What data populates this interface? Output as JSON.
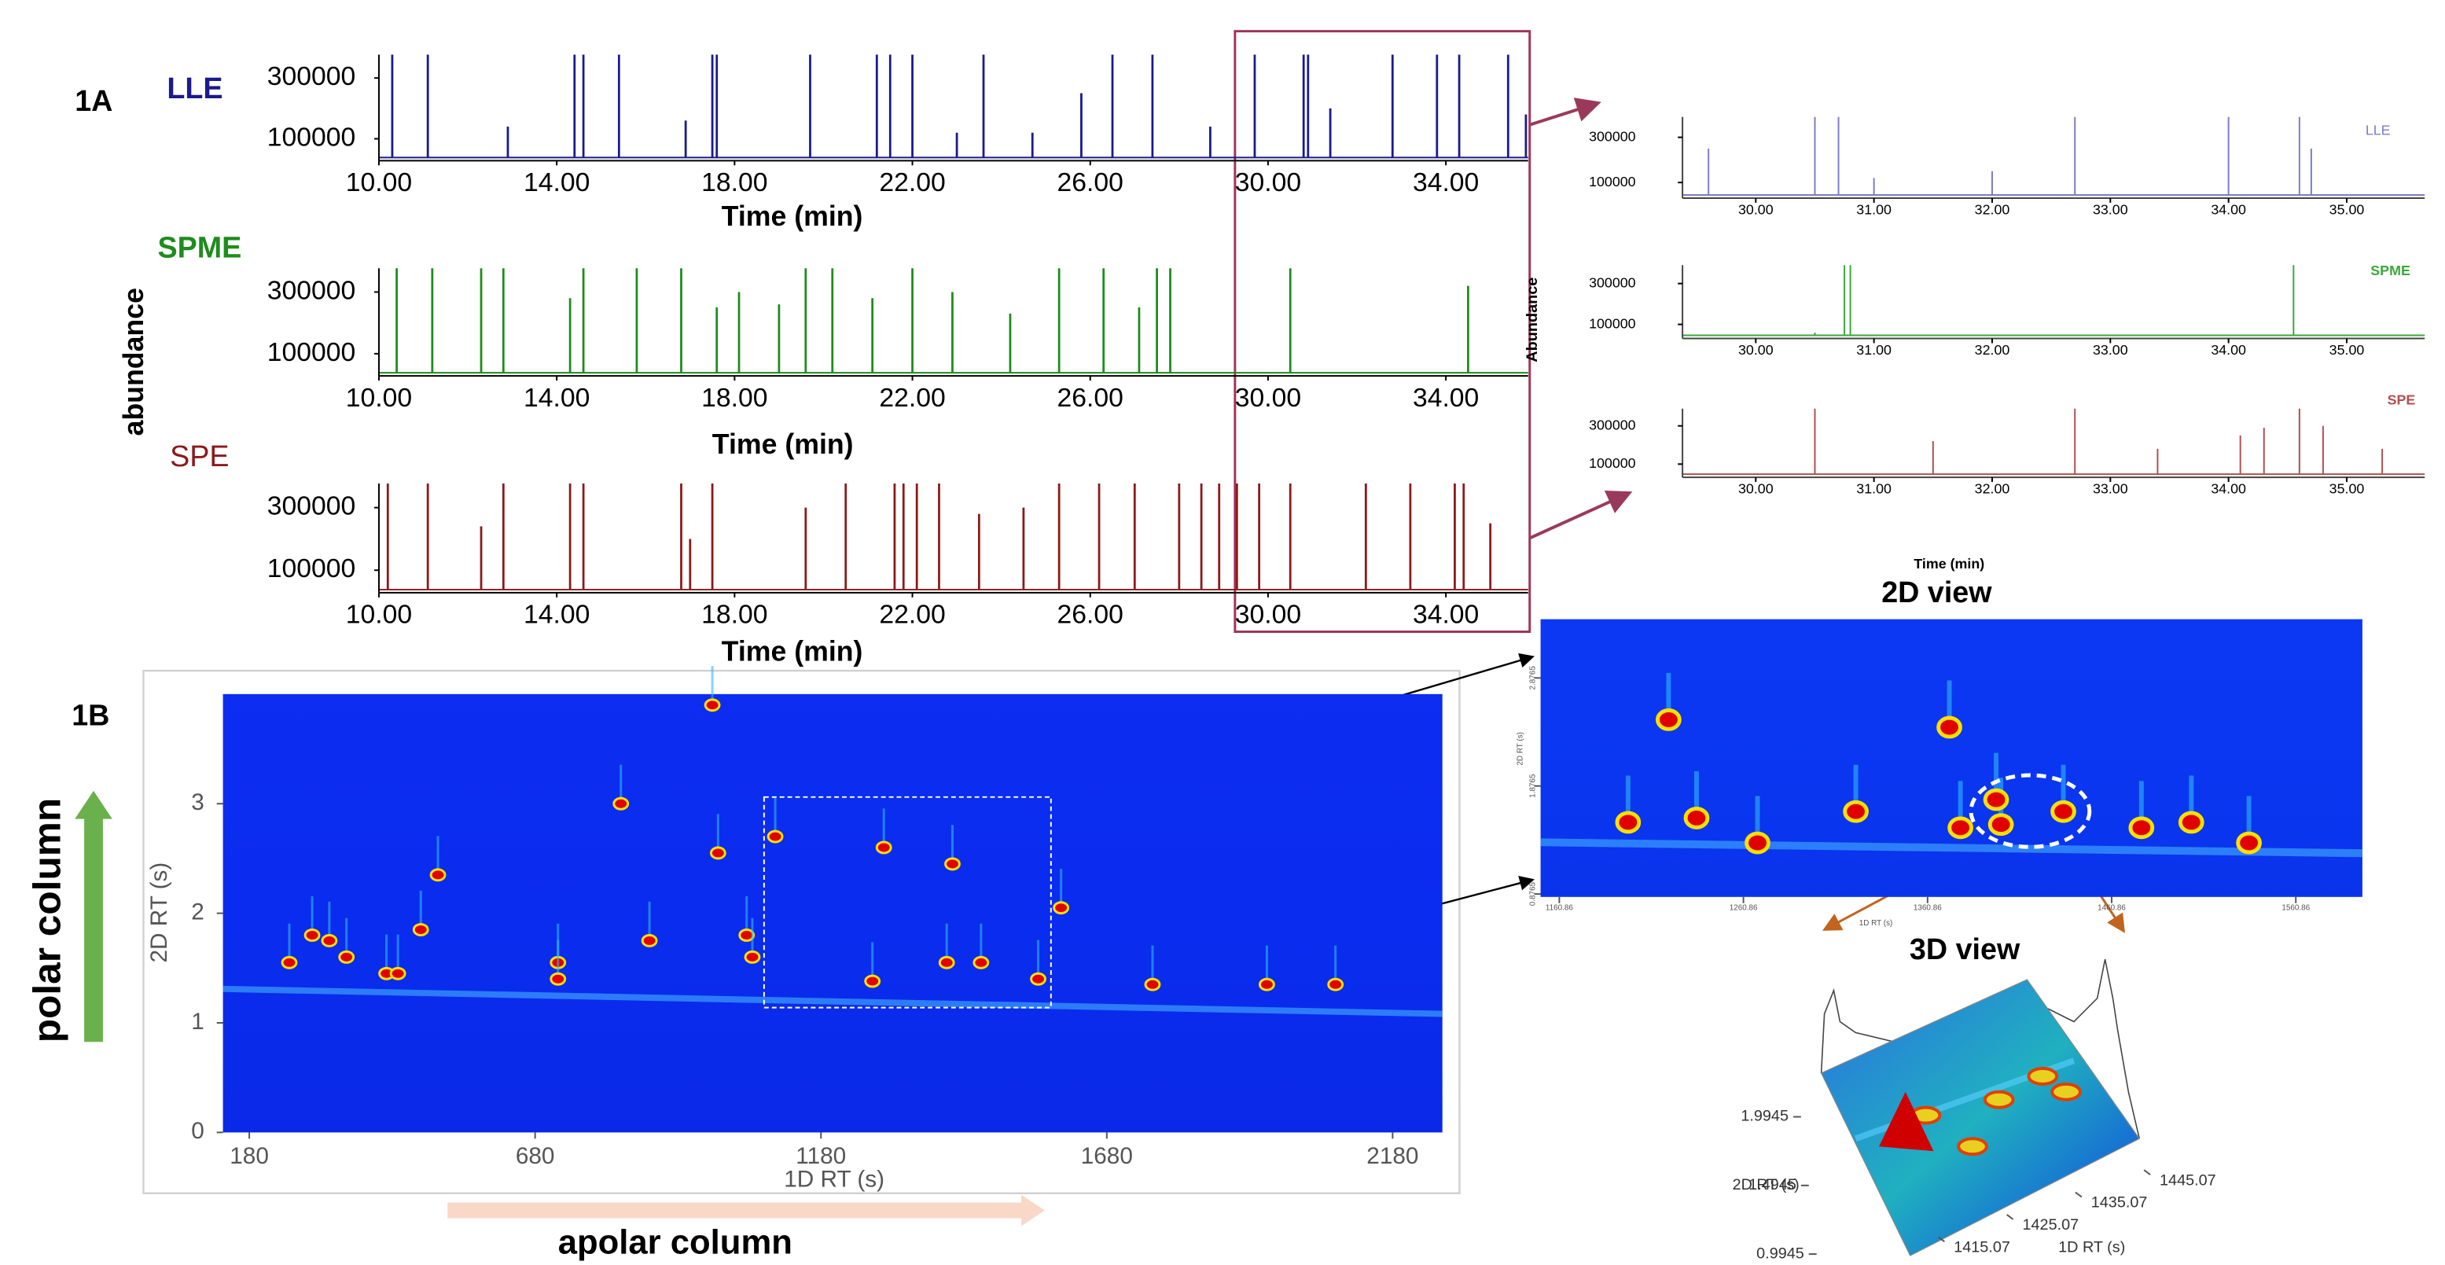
{
  "figure": {
    "panel_a_label": "1A",
    "panel_b_label": "1B",
    "y_axis_label": "abundance",
    "polar_column": "polar column",
    "apolar_column": "apolar column"
  },
  "chart_data": [
    {
      "type": "spike",
      "title": "LLE",
      "color": "#1a1a8c",
      "xlabel": "Time (min)",
      "x": [
        10.3,
        11.1,
        12.9,
        14.4,
        14.6,
        15.4,
        16.9,
        17.5,
        17.6,
        19.7,
        21.2,
        21.5,
        22.0,
        23.0,
        23.6,
        24.7,
        25.8,
        26.5,
        27.4,
        28.7,
        29.7,
        30.8,
        30.9,
        31.4,
        32.8,
        33.8,
        34.3,
        35.4,
        35.8
      ],
      "values": [
        377000,
        377000,
        140000,
        377000,
        377000,
        377000,
        160000,
        377000,
        377000,
        377000,
        377000,
        377000,
        377000,
        120000,
        377000,
        120000,
        250000,
        377000,
        377000,
        140000,
        377000,
        377000,
        377000,
        200000,
        377000,
        377000,
        377000,
        377000,
        180000
      ],
      "xlim": [
        10,
        35.85
      ],
      "ylim": [
        28000,
        377000
      ],
      "xticks": [
        {
          "value": 10,
          "label": "10.00"
        },
        {
          "value": 14,
          "label": "14.00"
        },
        {
          "value": 18,
          "label": "18.00"
        },
        {
          "value": 22,
          "label": "22.00"
        },
        {
          "value": 26,
          "label": "26.00"
        },
        {
          "value": 30,
          "label": "30.00"
        },
        {
          "value": 34,
          "label": "34.00"
        }
      ],
      "yticks": [
        100000,
        300000
      ]
    },
    {
      "type": "spike",
      "title": "SPME",
      "color": "#1e8c1e",
      "xlabel": "Time (min)",
      "x": [
        10.4,
        11.2,
        12.3,
        12.8,
        14.3,
        14.6,
        15.8,
        16.8,
        17.6,
        18.1,
        19.0,
        19.6,
        20.2,
        21.1,
        22.0,
        22.9,
        24.2,
        25.3,
        26.3,
        27.1,
        27.5,
        27.8,
        30.5,
        34.5
      ],
      "values": [
        377000,
        377000,
        377000,
        377000,
        280000,
        377000,
        377000,
        377000,
        250000,
        300000,
        260000,
        377000,
        377000,
        280000,
        377000,
        300000,
        230000,
        377000,
        377000,
        250000,
        377000,
        377000,
        377000,
        320000
      ],
      "xlim": [
        10,
        35.85
      ],
      "ylim": [
        28000,
        377000
      ],
      "xticks": [
        {
          "value": 10,
          "label": "10.00"
        },
        {
          "value": 14,
          "label": "14.00"
        },
        {
          "value": 18,
          "label": "18.00"
        },
        {
          "value": 22,
          "label": "22.00"
        },
        {
          "value": 26,
          "label": "26.00"
        },
        {
          "value": 30,
          "label": "30.00"
        },
        {
          "value": 34,
          "label": "34.00"
        }
      ],
      "yticks": [
        100000,
        300000
      ]
    },
    {
      "type": "spike",
      "title": "SPE",
      "color": "#8b1a1a",
      "xlabel": "Time (min)",
      "x": [
        10.2,
        11.1,
        12.3,
        12.8,
        14.3,
        14.6,
        16.8,
        17.0,
        17.5,
        19.6,
        20.5,
        21.6,
        21.8,
        22.1,
        22.6,
        23.5,
        24.5,
        25.3,
        26.2,
        27.0,
        28.0,
        28.5,
        28.9,
        29.3,
        29.8,
        30.5,
        32.2,
        33.2,
        34.2,
        34.4,
        35.0
      ],
      "values": [
        377000,
        377000,
        240000,
        377000,
        377000,
        377000,
        377000,
        200000,
        377000,
        300000,
        377000,
        377000,
        377000,
        377000,
        377000,
        280000,
        300000,
        377000,
        377000,
        377000,
        377000,
        377000,
        377000,
        377000,
        377000,
        377000,
        377000,
        377000,
        377000,
        377000,
        250000
      ],
      "xlim": [
        10,
        35.85
      ],
      "ylim": [
        28000,
        377000
      ],
      "xticks": [
        {
          "value": 10,
          "label": "10.00"
        },
        {
          "value": 14,
          "label": "14.00"
        },
        {
          "value": 18,
          "label": "18.00"
        },
        {
          "value": 22,
          "label": "22.00"
        },
        {
          "value": 26,
          "label": "26.00"
        },
        {
          "value": 30,
          "label": "30.00"
        },
        {
          "value": 34,
          "label": "34.00"
        }
      ],
      "yticks": [
        100000,
        300000
      ]
    },
    {
      "type": "spike",
      "title": "LLE",
      "color": "#7d7dc4",
      "x": [
        29.6,
        30.5,
        30.7,
        31.0,
        32.0,
        32.7,
        34.0,
        34.6,
        34.7
      ],
      "values": [
        250000,
        390000,
        390000,
        120000,
        150000,
        390000,
        390000,
        390000,
        250000
      ],
      "xlim": [
        29.38,
        35.66
      ],
      "ylim": [
        31000,
        390000
      ],
      "xticks": [
        {
          "value": 30,
          "label": "30.00"
        },
        {
          "value": 31,
          "label": "31.00"
        },
        {
          "value": 32,
          "label": "32.00"
        },
        {
          "value": 33,
          "label": "33.00"
        },
        {
          "value": 34,
          "label": "34.00"
        },
        {
          "value": 35,
          "label": "35.00"
        }
      ],
      "yticks": [
        100000,
        300000
      ]
    },
    {
      "type": "spike",
      "title": "SPME",
      "color": "#3aa83a",
      "ylabel": "Abundance",
      "x": [
        30.5,
        30.75,
        30.8,
        34.55
      ],
      "values": [
        60000,
        390000,
        390000,
        390000
      ],
      "xlim": [
        29.38,
        35.66
      ],
      "ylim": [
        31000,
        390000
      ],
      "xticks": [
        {
          "value": 30,
          "label": "30.00"
        },
        {
          "value": 31,
          "label": "31.00"
        },
        {
          "value": 32,
          "label": "32.00"
        },
        {
          "value": 33,
          "label": "33.00"
        },
        {
          "value": 34,
          "label": "34.00"
        },
        {
          "value": 35,
          "label": "35.00"
        }
      ],
      "yticks": [
        100000,
        300000
      ]
    },
    {
      "type": "spike",
      "title": "SPE",
      "color": "#b05050",
      "xlabel": "Time (min)",
      "x": [
        30.5,
        31.5,
        32.7,
        33.4,
        34.1,
        34.3,
        34.6,
        34.8,
        35.3
      ],
      "values": [
        390000,
        220000,
        390000,
        180000,
        250000,
        290000,
        390000,
        300000,
        180000
      ],
      "xlim": [
        29.38,
        35.66
      ],
      "ylim": [
        31000,
        390000
      ],
      "xticks": [
        {
          "value": 30,
          "label": "30.00"
        },
        {
          "value": 31,
          "label": "31.00"
        },
        {
          "value": 32,
          "label": "32.00"
        },
        {
          "value": 33,
          "label": "33.00"
        },
        {
          "value": 34,
          "label": "34.00"
        },
        {
          "value": 35,
          "label": "35.00"
        }
      ],
      "yticks": [
        100000,
        300000
      ]
    },
    {
      "type": "scatter",
      "xlabel": "1D RT (s)",
      "ylabel": "2D RT (s)",
      "color": "#e00000",
      "background": "#0a2cf0",
      "x": [
        250,
        290,
        320,
        350,
        420,
        440,
        480,
        510,
        720,
        720,
        830,
        880,
        990,
        1000,
        1050,
        1060,
        1100,
        1270,
        1290,
        1400,
        1410,
        1460,
        1560,
        1600,
        1760,
        1960,
        2080
      ],
      "y": [
        1.55,
        1.8,
        1.75,
        1.6,
        1.45,
        1.45,
        1.85,
        2.35,
        1.55,
        1.4,
        3.0,
        1.75,
        3.9,
        2.55,
        1.8,
        1.6,
        2.7,
        1.38,
        2.6,
        1.55,
        2.45,
        1.55,
        1.4,
        2.05,
        1.35,
        1.35,
        1.35
      ],
      "xlim": [
        134,
        2267
      ],
      "ylim": [
        0,
        4.0
      ],
      "xticks": [
        180,
        680,
        1180,
        1680,
        2180
      ],
      "yticks": [
        0,
        1,
        2,
        3
      ]
    },
    {
      "type": "scatter",
      "title": "2D view",
      "xlabel": "1D RT (s)",
      "ylabel": "2D RT (s)",
      "color": "#e00000",
      "background": "#0a3cf5",
      "x": [
        1220.2,
        1372.7,
        1198.2,
        1235.4,
        1268.5,
        1321.9,
        1378.7,
        1400.7,
        1398.1,
        1434.6,
        1477.0,
        1504.1,
        1535.4
      ],
      "y": [
        2.49,
        2.42,
        1.54,
        1.58,
        1.35,
        1.64,
        1.49,
        1.52,
        1.75,
        1.64,
        1.49,
        1.54,
        1.35
      ],
      "xlim": [
        1150.7,
        1597
      ],
      "ylim": [
        0.85,
        3.42
      ],
      "xticks": [
        1160.86,
        1260.86,
        1360.86,
        1460.86,
        1560.86
      ],
      "yticks": [
        0.8765,
        1.8765,
        2.8765
      ]
    },
    {
      "type": "surface",
      "title": "3D view",
      "xlabel": "1D RT (s)",
      "ylabel": "2D RT (s)",
      "xticks": [
        1415.07,
        1425.07,
        1435.07,
        1445.07
      ],
      "yticks": [
        0.9945,
        1.4945,
        1.9945
      ]
    }
  ]
}
